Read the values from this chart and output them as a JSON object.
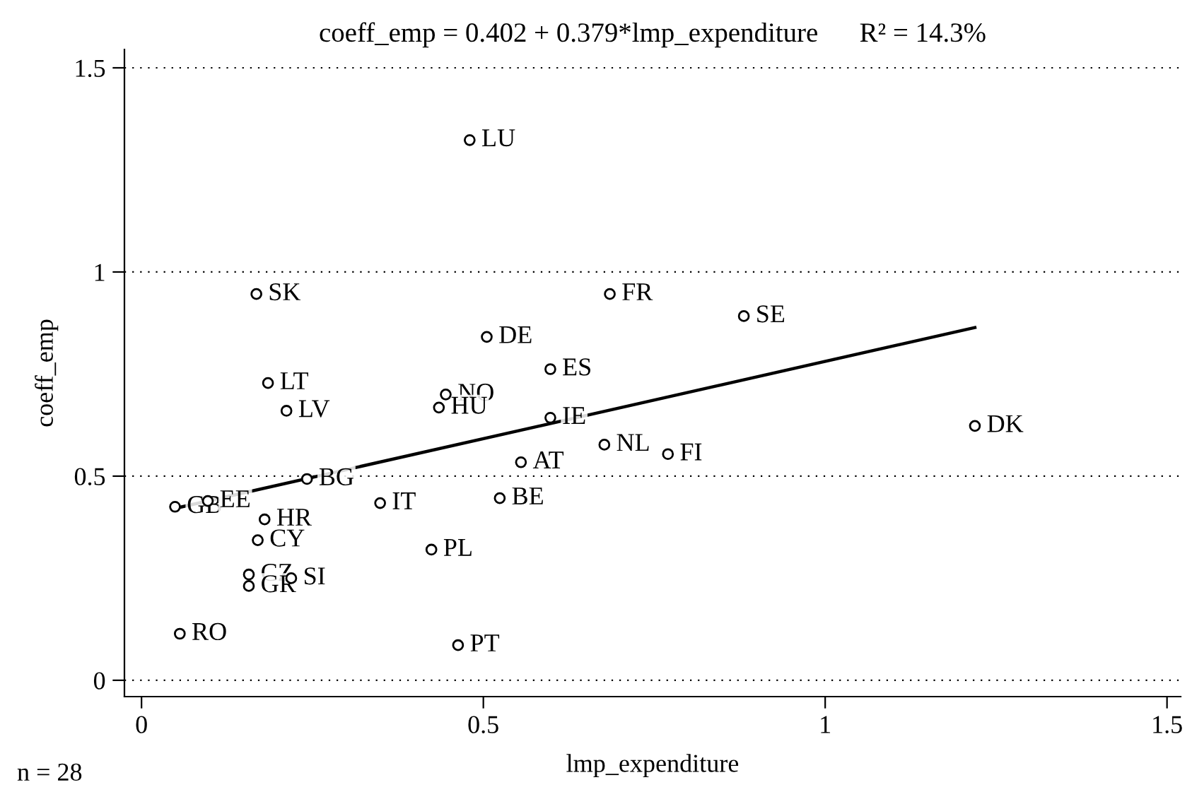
{
  "chart_data": {
    "type": "scatter",
    "title": "coeff_emp = 0.402 + 0.379*lmp_expenditure      R² = 14.3%",
    "xlabel": "lmp_expenditure",
    "ylabel": "coeff_emp",
    "annotations": [
      "n = 28"
    ],
    "xlim": [
      -0.025,
      1.52
    ],
    "ylim": [
      -0.04,
      1.545
    ],
    "xticks": [
      0,
      0.5,
      1,
      1.5
    ],
    "yticks": [
      0,
      0.5,
      1,
      1.5
    ],
    "grid": "y",
    "legend": false,
    "marker": "circle",
    "series": [
      {
        "color": "#000000",
        "x": [
          0.48,
          0.168,
          0.685,
          0.881,
          0.505,
          0.185,
          0.212,
          0.598,
          0.445,
          0.435,
          0.598,
          1.219,
          0.677,
          0.77,
          0.555,
          0.242,
          0.049,
          0.097,
          0.18,
          0.349,
          0.524,
          0.17,
          0.424,
          0.157,
          0.157,
          0.219,
          0.056,
          0.463
        ],
        "values": [
          1.323,
          0.946,
          0.946,
          0.892,
          0.841,
          0.728,
          0.66,
          0.762,
          0.7,
          0.668,
          0.643,
          0.623,
          0.577,
          0.554,
          0.534,
          0.493,
          0.425,
          0.439,
          0.394,
          0.434,
          0.446,
          0.343,
          0.32,
          0.259,
          0.231,
          0.25,
          0.114,
          0.086
        ],
        "value_labels": [
          "LU",
          "SK",
          "FR",
          "SE",
          "DE",
          "LT",
          "LV",
          "ES",
          "NO",
          "HU",
          "IE",
          "DK",
          "NL",
          "FI",
          "AT",
          "BG",
          "GB",
          "EE",
          "HR",
          "IT",
          "BE",
          "CY",
          "PL",
          "CZ",
          "GR",
          "SI",
          "RO",
          "PT"
        ]
      },
      {
        "type": "line",
        "color": "#000000",
        "x": [
          0.049,
          1.219
        ],
        "values": [
          0.421,
          0.864
        ],
        "marker": "none",
        "line_style": "solid"
      }
    ]
  }
}
